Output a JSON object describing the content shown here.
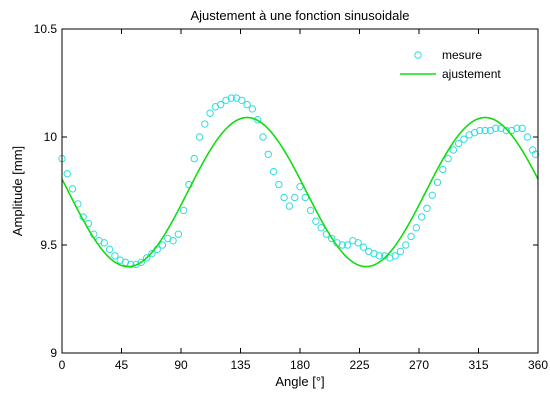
{
  "chart_data": {
    "type": "line",
    "title": "Ajustement à une fonction sinusoidale",
    "xlabel": "Angle [°]",
    "ylabel": "Amplitude [mm]",
    "xlim": [
      0,
      360
    ],
    "ylim": [
      9,
      10.5
    ],
    "xticks": [
      0,
      45,
      90,
      135,
      180,
      225,
      270,
      315,
      360
    ],
    "yticks": [
      9,
      9.5,
      10,
      10.5
    ],
    "ytick_labels": [
      "9",
      "9.5",
      "10",
      "10.5"
    ],
    "grid": false,
    "legend_position": "top-right",
    "colors": {
      "measurement": "#33dddd",
      "fit": "#11dd11",
      "axes": "#000000",
      "background": "#ffffff"
    },
    "series": [
      {
        "name": "mesure",
        "type": "scatter",
        "marker": "circle-open",
        "x": [
          0,
          4,
          8,
          12,
          16,
          20,
          24,
          28,
          32,
          36,
          40,
          44,
          48,
          52,
          56,
          60,
          64,
          68,
          72,
          76,
          80,
          84,
          88,
          92,
          96,
          100,
          104,
          108,
          112,
          116,
          120,
          124,
          128,
          132,
          136,
          140,
          144,
          148,
          152,
          156,
          160,
          164,
          168,
          172,
          176,
          180,
          184,
          188,
          192,
          196,
          200,
          204,
          208,
          212,
          216,
          220,
          224,
          228,
          232,
          236,
          240,
          244,
          248,
          252,
          256,
          260,
          264,
          268,
          272,
          276,
          280,
          284,
          288,
          292,
          296,
          300,
          304,
          308,
          312,
          316,
          320,
          324,
          328,
          332,
          336,
          340,
          344,
          348,
          352,
          356,
          358
        ],
        "y": [
          9.9,
          9.83,
          9.76,
          9.69,
          9.63,
          9.6,
          9.55,
          9.52,
          9.51,
          9.48,
          9.45,
          9.43,
          9.42,
          9.41,
          9.41,
          9.42,
          9.44,
          9.46,
          9.48,
          9.5,
          9.53,
          9.52,
          9.55,
          9.66,
          9.78,
          9.9,
          10.0,
          10.06,
          10.11,
          10.14,
          10.15,
          10.17,
          10.18,
          10.18,
          10.17,
          10.15,
          10.13,
          10.08,
          10.0,
          9.92,
          9.84,
          9.78,
          9.72,
          9.68,
          9.72,
          9.77,
          9.72,
          9.66,
          9.61,
          9.58,
          9.55,
          9.53,
          9.51,
          9.5,
          9.5,
          9.52,
          9.51,
          9.49,
          9.47,
          9.46,
          9.45,
          9.45,
          9.44,
          9.45,
          9.47,
          9.5,
          9.54,
          9.58,
          9.63,
          9.67,
          9.73,
          9.79,
          9.85,
          9.9,
          9.94,
          9.97,
          9.99,
          10.01,
          10.02,
          10.03,
          10.03,
          10.03,
          10.04,
          10.04,
          10.03,
          10.03,
          10.04,
          10.04,
          10.0,
          9.94,
          9.92
        ]
      },
      {
        "name": "ajustement",
        "type": "line",
        "model": {
          "formula": "offset + amplitude * cos(2*pi*(x - phase)/period)",
          "offset": 9.745,
          "amplitude": 0.345,
          "period": 180,
          "phase": 140
        }
      }
    ]
  }
}
